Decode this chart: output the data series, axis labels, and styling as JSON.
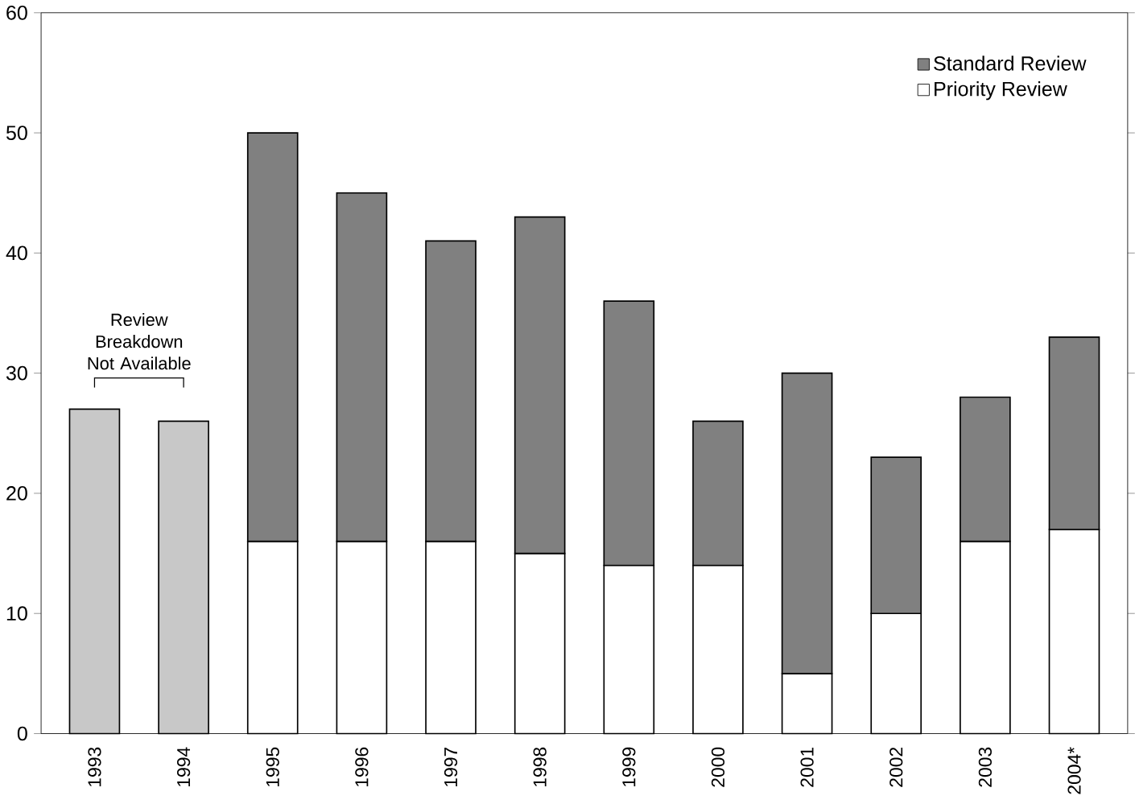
{
  "chart_data": {
    "type": "bar",
    "stacked": true,
    "categories": [
      "1993",
      "1994",
      "1995",
      "1996",
      "1997",
      "1998",
      "1999",
      "2000",
      "2001",
      "2002",
      "2003",
      "2004*"
    ],
    "series": [
      {
        "name": "Priority Review",
        "color": "#ffffff",
        "values": [
          null,
          null,
          16,
          16,
          16,
          15,
          14,
          14,
          5,
          10,
          16,
          17
        ]
      },
      {
        "name": "Standard Review",
        "color": "#808080",
        "values": [
          null,
          null,
          34,
          29,
          25,
          28,
          22,
          12,
          25,
          13,
          12,
          16
        ]
      },
      {
        "color": "#c8c8c8",
        "values": [
          27,
          26,
          null,
          null,
          null,
          null,
          null,
          null,
          null,
          null,
          null,
          null
        ]
      }
    ],
    "ylim": [
      0,
      60
    ],
    "yticks": [
      0,
      10,
      20,
      30,
      40,
      50,
      60
    ],
    "legend": "top right",
    "annotations": [
      "Review Breakdown Not Available"
    ]
  }
}
